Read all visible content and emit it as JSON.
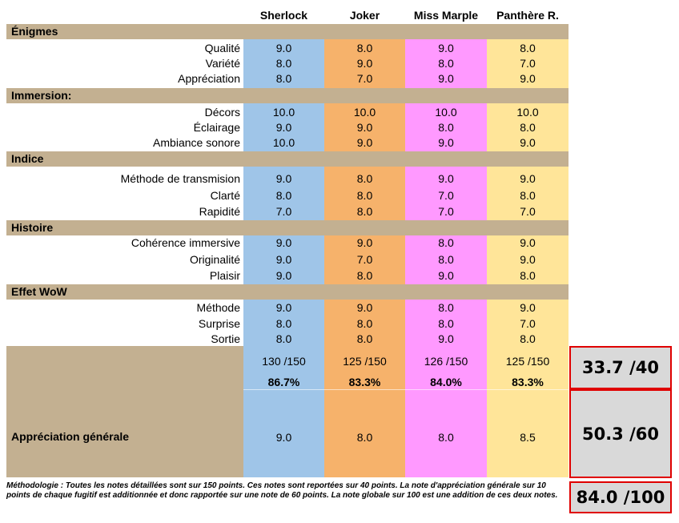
{
  "columns": [
    "Sherlock",
    "Joker",
    "Miss Marple",
    "Panthère R."
  ],
  "sections": [
    {
      "title": "Énigmes",
      "rows": [
        {
          "label": "Qualité",
          "values": [
            "9.0",
            "8.0",
            "9.0",
            "8.0"
          ]
        },
        {
          "label": "Variété",
          "values": [
            "8.0",
            "9.0",
            "8.0",
            "7.0"
          ]
        },
        {
          "label": "Appréciation",
          "values": [
            "8.0",
            "7.0",
            "9.0",
            "9.0"
          ]
        }
      ]
    },
    {
      "title": "Immersion:",
      "rows": [
        {
          "label": "Décors",
          "values": [
            "10.0",
            "10.0",
            "10.0",
            "10.0"
          ]
        },
        {
          "label": "Éclairage",
          "values": [
            "9.0",
            "9.0",
            "8.0",
            "8.0"
          ]
        },
        {
          "label": "Ambiance sonore",
          "values": [
            "10.0",
            "9.0",
            "9.0",
            "9.0"
          ]
        }
      ]
    },
    {
      "title": "Indice",
      "rows": [
        {
          "label": "Méthode de transmision",
          "values": [
            "9.0",
            "8.0",
            "9.0",
            "9.0"
          ]
        },
        {
          "label": "Clarté",
          "values": [
            "8.0",
            "8.0",
            "7.0",
            "8.0"
          ]
        },
        {
          "label": "Rapidité",
          "values": [
            "7.0",
            "8.0",
            "7.0",
            "7.0"
          ]
        }
      ]
    },
    {
      "title": "Histoire",
      "rows": [
        {
          "label": "Cohérence immersive",
          "values": [
            "9.0",
            "9.0",
            "8.0",
            "9.0"
          ]
        },
        {
          "label": "Originalité",
          "values": [
            "9.0",
            "7.0",
            "8.0",
            "9.0"
          ]
        },
        {
          "label": "Plaisir",
          "values": [
            "9.0",
            "8.0",
            "9.0",
            "8.0"
          ]
        }
      ]
    },
    {
      "title": "Effet WoW",
      "rows": [
        {
          "label": "Méthode",
          "values": [
            "9.0",
            "9.0",
            "8.0",
            "9.0"
          ]
        },
        {
          "label": "Surprise",
          "values": [
            "8.0",
            "8.0",
            "8.0",
            "7.0"
          ]
        },
        {
          "label": "Sortie",
          "values": [
            "8.0",
            "8.0",
            "9.0",
            "8.0"
          ]
        }
      ]
    }
  ],
  "totals": {
    "points": [
      "130 /150",
      "125 /150",
      "126 /150",
      "125 /150"
    ],
    "percents": [
      "86.7%",
      "83.3%",
      "84.0%",
      "83.3%"
    ]
  },
  "general": {
    "label": "Appréciation générale",
    "values": [
      "9.0",
      "8.0",
      "8.0",
      "8.5"
    ]
  },
  "scores": {
    "detail": "33.7 /40",
    "general": "50.3 /60",
    "total": "84.0 /100"
  },
  "methodology": "Méthodologie : Toutes les notes détaillées sont sur 150 points. Ces notes sont reportées sur 40 points. La note d'appréciation générale sur 10 points de chaque fugitif est additionnée et donc rapportée sur une note de 60 points. La note globale sur 100 est une addition de ces deux notes.",
  "colors": {
    "section": "#c3b091",
    "sherlock": "#9fc5e8",
    "joker": "#f6b26b",
    "marple": "#ff99ff",
    "panthere": "#ffe599",
    "score_border": "#e00000",
    "score_bg": "#d9d9d9"
  }
}
